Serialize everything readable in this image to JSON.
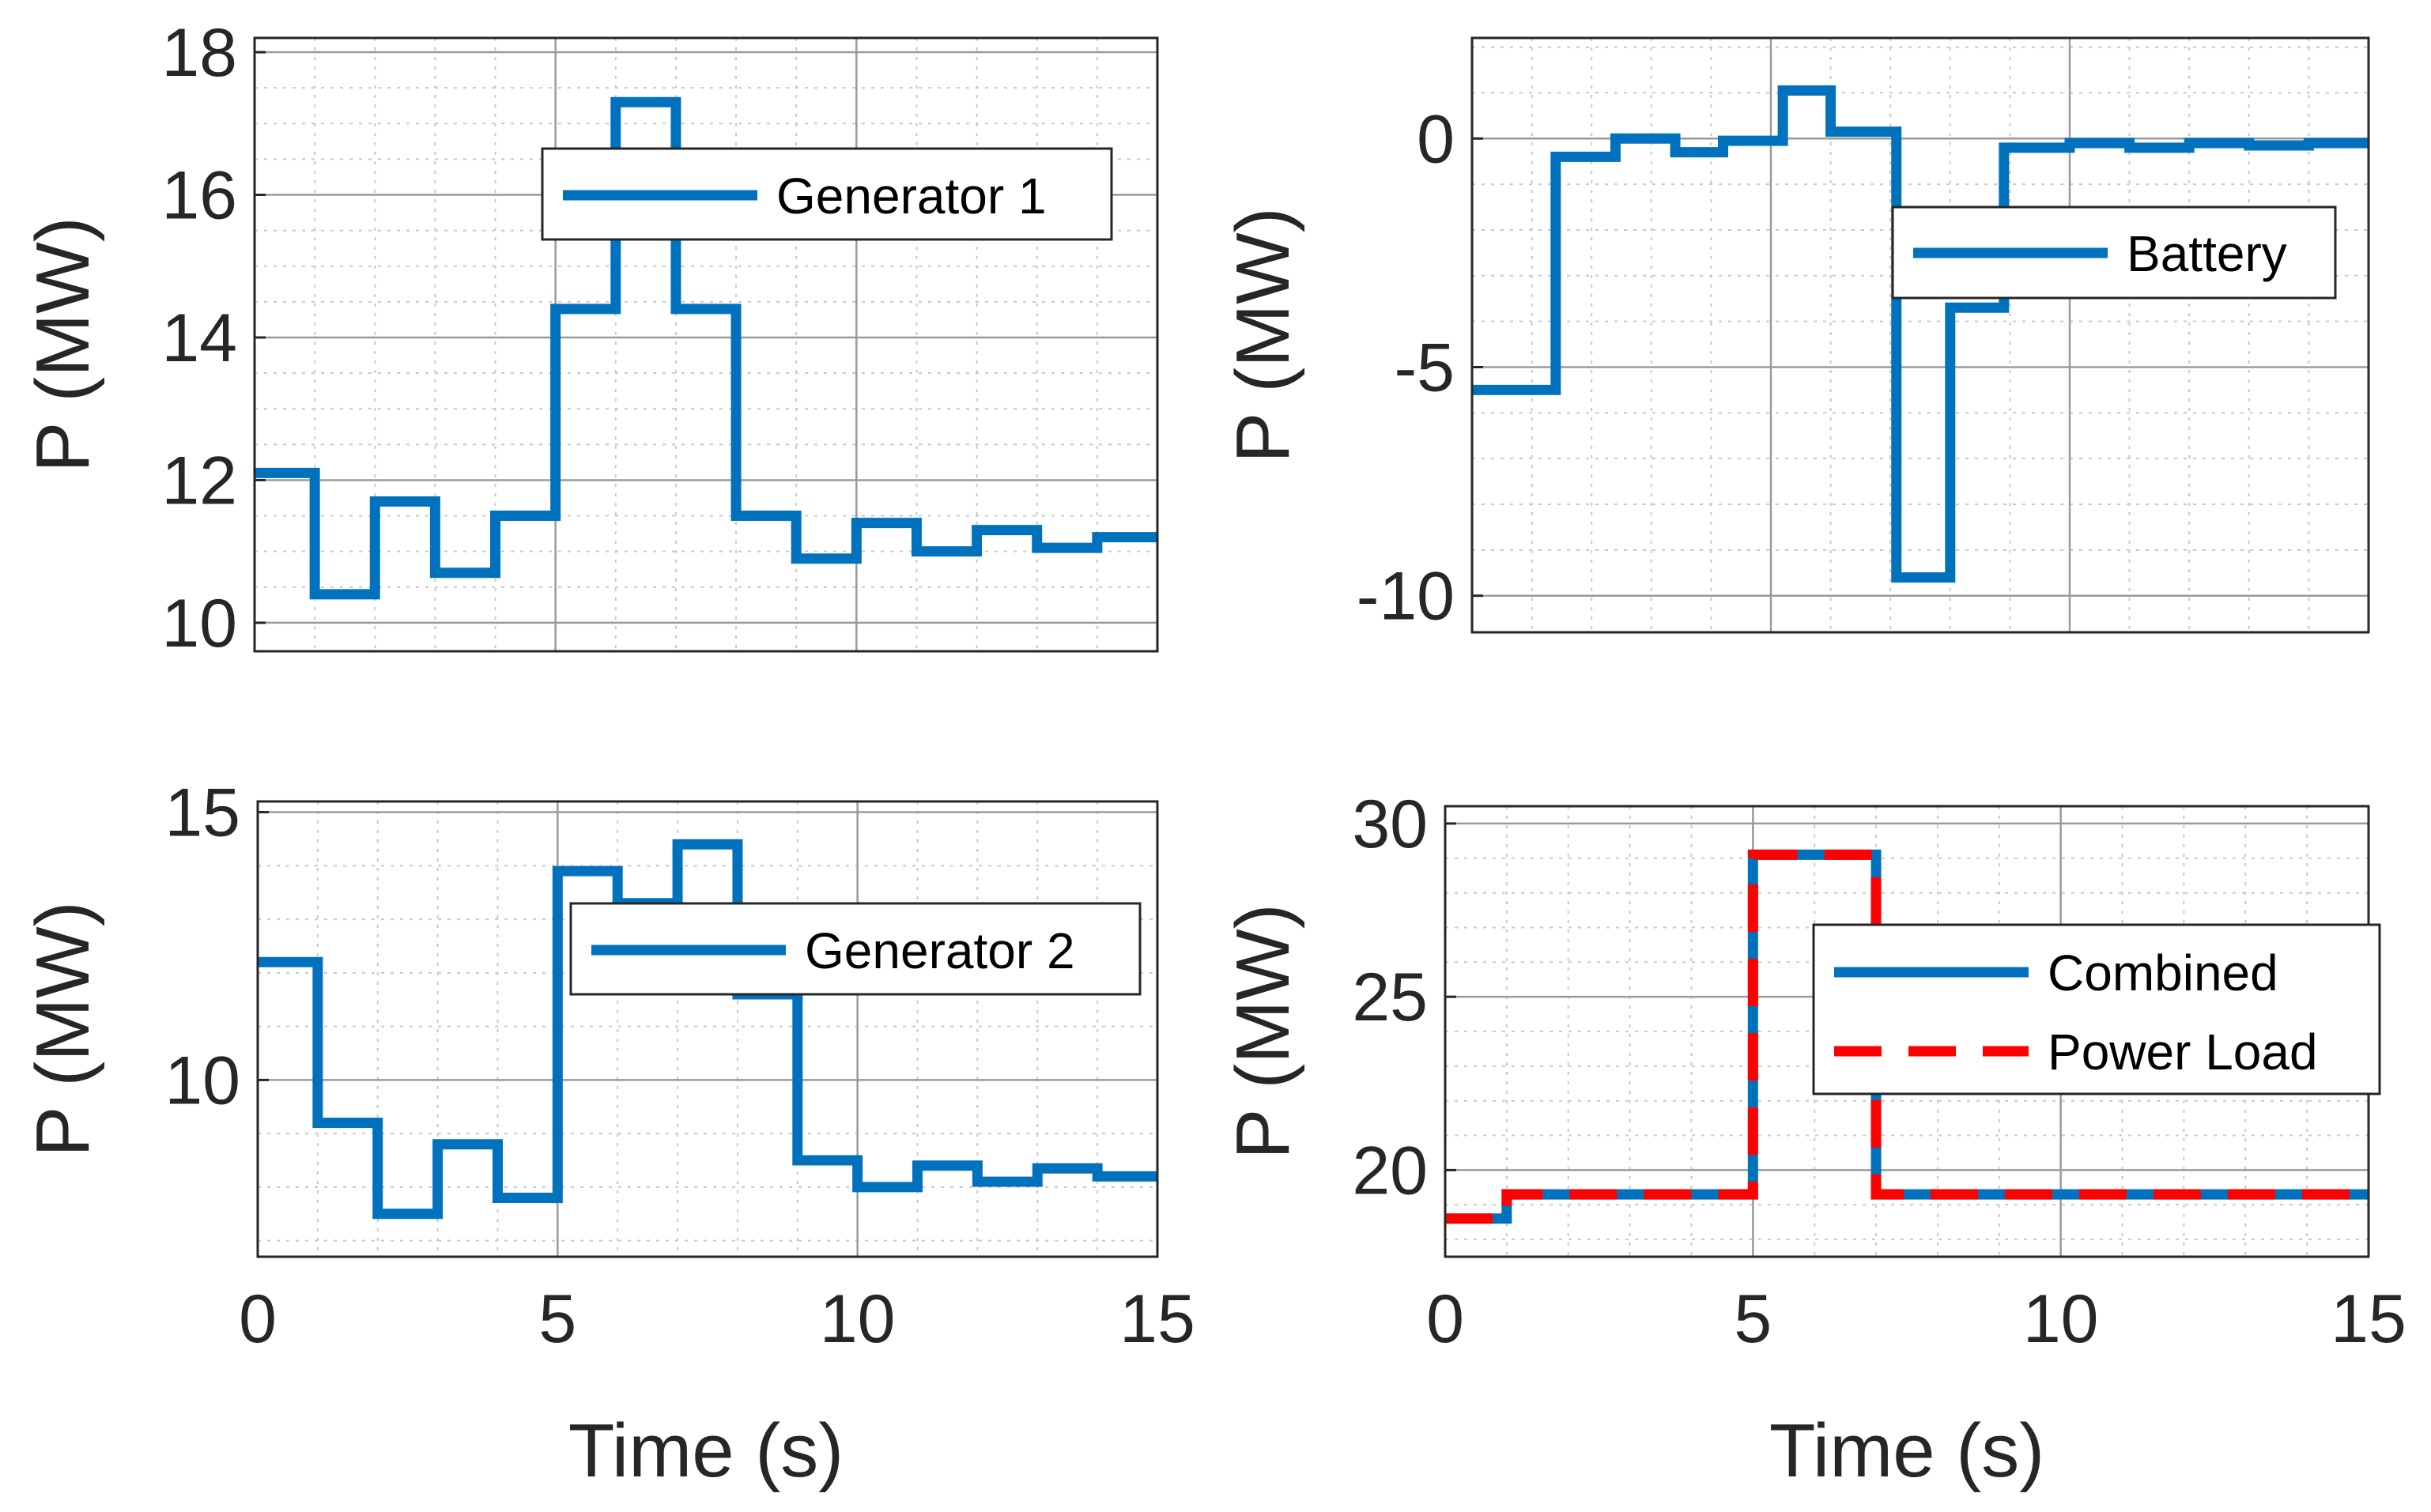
{
  "chart_data": [
    {
      "id": "gen1",
      "type": "line",
      "title": "",
      "xlabel": "",
      "ylabel": "P (MW)",
      "xlim": [
        0,
        15
      ],
      "ylim": [
        9.6,
        18.2
      ],
      "xticks": [],
      "yticks": [
        10,
        12,
        14,
        16,
        18
      ],
      "ytick_labels": [
        "10",
        "12",
        "14",
        "16",
        "18"
      ],
      "grid": true,
      "legend_position": "upper-middle",
      "series": [
        {
          "name": "Generator 1",
          "color": "#0072BD",
          "style": "solid",
          "step": true,
          "x": [
            0,
            1,
            2,
            3,
            4,
            5,
            6,
            7,
            8,
            9,
            10,
            11,
            12,
            13,
            14,
            15
          ],
          "y": [
            12.1,
            10.4,
            11.7,
            10.7,
            11.5,
            14.4,
            17.3,
            14.4,
            11.5,
            10.9,
            11.4,
            11.0,
            11.3,
            11.05,
            11.2,
            11.2
          ]
        }
      ]
    },
    {
      "id": "battery",
      "type": "line",
      "title": "",
      "xlabel": "",
      "ylabel": "P (MW)",
      "xlim": [
        0,
        15
      ],
      "ylim": [
        -10.8,
        2.2
      ],
      "xticks": [],
      "yticks": [
        -10,
        -5,
        0
      ],
      "ytick_labels": [
        "-10",
        "-5",
        "0"
      ],
      "grid": true,
      "legend_position": "right-middle",
      "series": [
        {
          "name": "Battery",
          "color": "#0072BD",
          "style": "solid",
          "step": true,
          "x": [
            0,
            1.4,
            2.4,
            3.4,
            4.2,
            5.2,
            6.0,
            7.1,
            8.0,
            8.9,
            10.0,
            11.0,
            12.0,
            13.0,
            14.0,
            15.0
          ],
          "y": [
            -5.5,
            -0.4,
            0.0,
            -0.3,
            -0.05,
            1.05,
            0.15,
            -9.6,
            -3.7,
            -0.2,
            -0.1,
            -0.2,
            -0.1,
            -0.15,
            -0.1,
            -0.1
          ]
        }
      ]
    },
    {
      "id": "gen2",
      "type": "line",
      "title": "",
      "xlabel": "Time (s)",
      "ylabel": "P (MW)",
      "xlim": [
        0,
        15
      ],
      "ylim": [
        6.7,
        15.2
      ],
      "xticks": [
        0,
        5,
        10,
        15
      ],
      "xtick_labels": [
        "0",
        "5",
        "10",
        "15"
      ],
      "yticks": [
        10,
        15
      ],
      "ytick_labels": [
        "10",
        "15"
      ],
      "grid": true,
      "legend_position": "right-middle",
      "series": [
        {
          "name": "Generator 2",
          "color": "#0072BD",
          "style": "solid",
          "step": true,
          "x": [
            0,
            1,
            2,
            3,
            4,
            5,
            6,
            7,
            8,
            9,
            10,
            11,
            12,
            13,
            14,
            15
          ],
          "y": [
            12.2,
            9.2,
            7.5,
            8.8,
            7.8,
            13.9,
            13.3,
            14.4,
            11.6,
            8.5,
            8.0,
            8.4,
            8.1,
            8.35,
            8.2,
            8.2
          ]
        }
      ]
    },
    {
      "id": "combined",
      "type": "line",
      "title": "",
      "xlabel": "Time (s)",
      "ylabel": "P (MW)",
      "xlim": [
        0,
        15
      ],
      "ylim": [
        17.5,
        30.5
      ],
      "xticks": [
        0,
        5,
        10,
        15
      ],
      "xtick_labels": [
        "0",
        "5",
        "10",
        "15"
      ],
      "yticks": [
        20,
        25,
        30
      ],
      "ytick_labels": [
        "20",
        "25",
        "30"
      ],
      "grid": true,
      "legend_position": "right-middle",
      "series": [
        {
          "name": "Combined",
          "color": "#0072BD",
          "style": "solid",
          "step": true,
          "x": [
            0,
            1,
            5,
            7,
            15
          ],
          "y": [
            18.6,
            19.3,
            29.1,
            19.3,
            19.3
          ]
        },
        {
          "name": "Power Load",
          "color": "#FF0000",
          "style": "dashed",
          "step": true,
          "x": [
            0,
            1,
            5,
            7,
            15
          ],
          "y": [
            18.6,
            19.3,
            29.1,
            19.3,
            19.3
          ]
        }
      ]
    }
  ]
}
